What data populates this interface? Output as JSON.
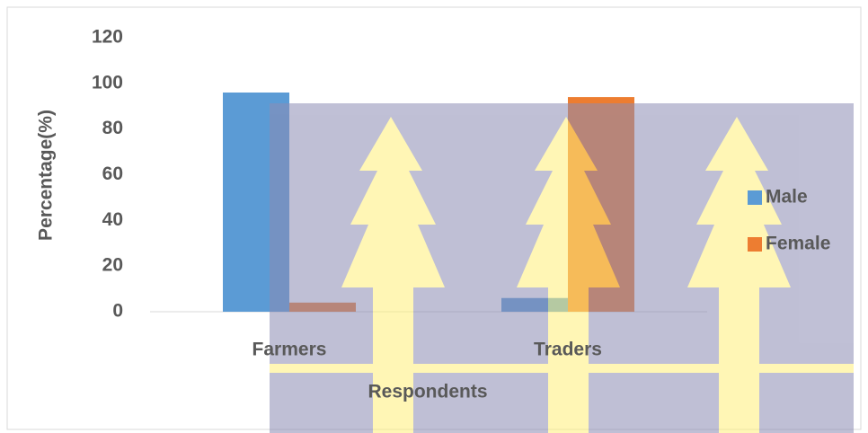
{
  "chart_data": {
    "type": "bar",
    "x_label": "Respondents",
    "y_label": "Percentage(%)",
    "categories": [
      "Farmers",
      "Traders"
    ],
    "series": [
      {
        "name": "Male",
        "color": "#5b9bd5",
        "values": [
          96,
          6
        ]
      },
      {
        "name": "Female",
        "color": "#ed7d31",
        "values": [
          4,
          94
        ]
      }
    ],
    "ylim": [
      0,
      120
    ],
    "yticks": [
      0,
      20,
      40,
      60,
      80,
      100,
      120
    ],
    "grid": false,
    "legend": "right"
  }
}
